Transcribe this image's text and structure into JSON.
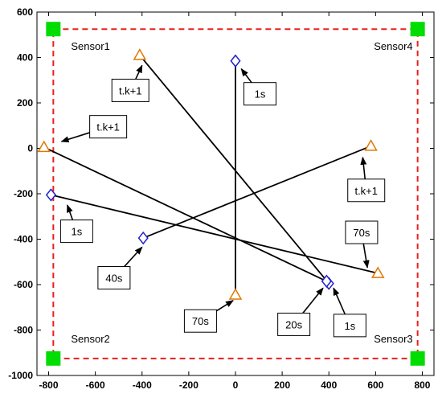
{
  "chart_data": {
    "type": "scatter",
    "xlim": [
      -850,
      850
    ],
    "ylim": [
      -1000,
      600
    ],
    "x_ticks": [
      "-800",
      "-600",
      "-400",
      "-200",
      "0",
      "200",
      "400",
      "600",
      "800"
    ],
    "y_ticks": [
      "600",
      "400",
      "200",
      "0",
      "-200",
      "-400",
      "-600",
      "-800",
      "-1000"
    ],
    "grid": false,
    "boundary": {
      "x": [
        -780,
        780
      ],
      "y": [
        -925,
        525
      ],
      "color": "#e8201c"
    },
    "sensors": [
      {
        "label": "Sensor1",
        "x": -780,
        "y": 525
      },
      {
        "label": "Sensor2",
        "x": -780,
        "y": -925
      },
      {
        "label": "Sensor3",
        "x": 780,
        "y": -925
      },
      {
        "label": "Sensor4",
        "x": 780,
        "y": 525
      }
    ],
    "sensor_color": "#00dd00",
    "start_color": "#1f1fd0",
    "end_color": "#e07800",
    "tracks": [
      {
        "start": {
          "x": 0,
          "y": 385
        },
        "end": {
          "x": 0,
          "y": -645
        }
      },
      {
        "start": {
          "x": 400,
          "y": -595
        },
        "end": {
          "x": -410,
          "y": 410
        }
      },
      {
        "start": {
          "x": 390,
          "y": -585
        },
        "end": {
          "x": -820,
          "y": 5
        }
      },
      {
        "start": {
          "x": -790,
          "y": -205
        },
        "end": {
          "x": 610,
          "y": -550
        }
      },
      {
        "start": {
          "x": -395,
          "y": -395
        },
        "end": {
          "x": 580,
          "y": 10
        }
      }
    ],
    "annotations": [
      {
        "text": "t.k+1",
        "x": -450,
        "y": 255,
        "target": {
          "x": -400,
          "y": 365
        }
      },
      {
        "text": "t.k+1",
        "x": -545,
        "y": 95,
        "target": {
          "x": -745,
          "y": 30
        }
      },
      {
        "text": "1s",
        "x": 105,
        "y": 240,
        "target": {
          "x": 25,
          "y": 350
        }
      },
      {
        "text": "t.k+1",
        "x": 560,
        "y": -185,
        "target": {
          "x": 545,
          "y": -40
        }
      },
      {
        "text": "1s",
        "x": -680,
        "y": -365,
        "target": {
          "x": -720,
          "y": -250
        }
      },
      {
        "text": "70s",
        "x": 540,
        "y": -370,
        "target": {
          "x": 565,
          "y": -525
        }
      },
      {
        "text": "40s",
        "x": -520,
        "y": -570,
        "target": {
          "x": -400,
          "y": -435
        }
      },
      {
        "text": "70s",
        "x": -150,
        "y": -760,
        "target": {
          "x": -10,
          "y": -670
        }
      },
      {
        "text": "20s",
        "x": 250,
        "y": -775,
        "target": {
          "x": 375,
          "y": -615
        }
      },
      {
        "text": "1s",
        "x": 490,
        "y": -780,
        "target": {
          "x": 420,
          "y": -615
        }
      }
    ]
  }
}
